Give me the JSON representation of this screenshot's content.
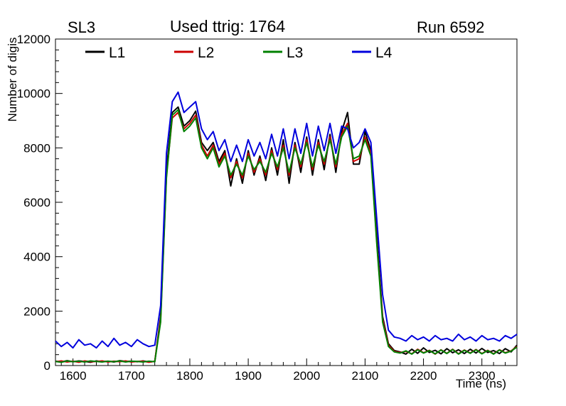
{
  "header": {
    "left": "SL3",
    "center": "Used ttrig: 1764",
    "right": "Run 6592"
  },
  "axes": {
    "x_major_ticks": [
      1600,
      1700,
      1800,
      1900,
      2000,
      2100,
      2200,
      2300
    ],
    "y_major_ticks": [
      0,
      2000,
      4000,
      6000,
      8000,
      10000,
      12000
    ],
    "x_minor_step": 20,
    "y_minor_step": 400
  },
  "chart_data": {
    "type": "line",
    "title": "Used ttrig: 1764",
    "xlabel": "Time (ns)",
    "ylabel": "Number of digis",
    "xlim": [
      1570,
      2360
    ],
    "ylim": [
      0,
      12000
    ],
    "grid": false,
    "legend_position": "top",
    "x": [
      1570,
      1580,
      1590,
      1600,
      1610,
      1620,
      1630,
      1640,
      1650,
      1660,
      1670,
      1680,
      1690,
      1700,
      1710,
      1720,
      1730,
      1740,
      1750,
      1760,
      1770,
      1780,
      1790,
      1800,
      1810,
      1820,
      1830,
      1840,
      1850,
      1860,
      1870,
      1880,
      1890,
      1900,
      1910,
      1920,
      1930,
      1940,
      1950,
      1960,
      1970,
      1980,
      1990,
      2000,
      2010,
      2020,
      2030,
      2040,
      2050,
      2060,
      2070,
      2080,
      2090,
      2100,
      2110,
      2120,
      2130,
      2140,
      2150,
      2160,
      2170,
      2180,
      2190,
      2200,
      2210,
      2220,
      2230,
      2240,
      2250,
      2260,
      2270,
      2280,
      2290,
      2300,
      2310,
      2320,
      2330,
      2340,
      2350,
      2360
    ],
    "series": [
      {
        "name": "L1",
        "color": "#000000",
        "values": [
          160,
          130,
          180,
          140,
          170,
          150,
          120,
          170,
          140,
          160,
          130,
          180,
          150,
          160,
          140,
          170,
          130,
          150,
          1800,
          7200,
          9300,
          9500,
          8800,
          9000,
          9350,
          8200,
          7900,
          8200,
          7500,
          7900,
          6600,
          7600,
          6700,
          7900,
          7000,
          7700,
          6800,
          8000,
          7000,
          8300,
          6700,
          8200,
          7100,
          8400,
          7000,
          8300,
          7200,
          8500,
          7100,
          8600,
          9300,
          7400,
          7400,
          8600,
          7900,
          4800,
          1800,
          800,
          550,
          500,
          420,
          600,
          450,
          650,
          480,
          560,
          430,
          620,
          470,
          580,
          440,
          600,
          460,
          630,
          480,
          550,
          440,
          620,
          500,
          750
        ]
      },
      {
        "name": "L2",
        "color": "#cc0000",
        "values": [
          140,
          170,
          130,
          160,
          120,
          170,
          140,
          150,
          170,
          130,
          160,
          140,
          170,
          130,
          150,
          160,
          120,
          160,
          1700,
          7000,
          9100,
          9300,
          8700,
          8900,
          9200,
          8100,
          7700,
          8100,
          7400,
          7800,
          6900,
          7500,
          6900,
          7800,
          7100,
          7600,
          7000,
          7900,
          7200,
          8100,
          7000,
          8100,
          7300,
          8300,
          7200,
          8200,
          7400,
          8400,
          7300,
          8500,
          8900,
          7500,
          7600,
          8400,
          7800,
          4600,
          1700,
          750,
          520,
          480,
          520,
          430,
          600,
          470,
          560,
          420,
          580,
          450,
          600,
          430,
          570,
          460,
          590,
          440,
          560,
          430,
          580,
          470,
          540,
          700
        ]
      },
      {
        "name": "L3",
        "color": "#008000",
        "values": [
          150,
          120,
          170,
          140,
          160,
          130,
          170,
          150,
          130,
          160,
          140,
          170,
          130,
          160,
          150,
          130,
          160,
          140,
          1600,
          6900,
          9200,
          9400,
          8600,
          8800,
          9100,
          8000,
          7600,
          8000,
          7300,
          7700,
          7000,
          7400,
          7000,
          7700,
          7200,
          7500,
          7100,
          7800,
          7300,
          8000,
          7100,
          8000,
          7400,
          8200,
          7300,
          8100,
          7500,
          8300,
          7400,
          8400,
          8800,
          7600,
          7700,
          8300,
          7700,
          4500,
          1600,
          700,
          500,
          460,
          540,
          420,
          580,
          460,
          550,
          430,
          570,
          440,
          590,
          420,
          560,
          450,
          580,
          430,
          550,
          420,
          570,
          460,
          530,
          680
        ]
      },
      {
        "name": "L4",
        "color": "#0000dd",
        "values": [
          900,
          700,
          850,
          650,
          950,
          750,
          800,
          650,
          900,
          700,
          1000,
          750,
          850,
          700,
          950,
          800,
          700,
          750,
          2200,
          7800,
          9700,
          10050,
          9300,
          9500,
          9700,
          8700,
          8300,
          8600,
          7900,
          8300,
          7500,
          8100,
          7500,
          8300,
          7700,
          8200,
          7600,
          8500,
          7700,
          8700,
          7600,
          8700,
          7800,
          8900,
          7700,
          8800,
          7900,
          8900,
          7800,
          8800,
          8700,
          8000,
          8200,
          8700,
          8200,
          5400,
          2600,
          1300,
          1050,
          1000,
          900,
          1100,
          950,
          1050,
          900,
          1100,
          950,
          1000,
          900,
          1150,
          950,
          1050,
          900,
          1100,
          950,
          1000,
          900,
          1100,
          1000,
          1150
        ]
      }
    ]
  }
}
